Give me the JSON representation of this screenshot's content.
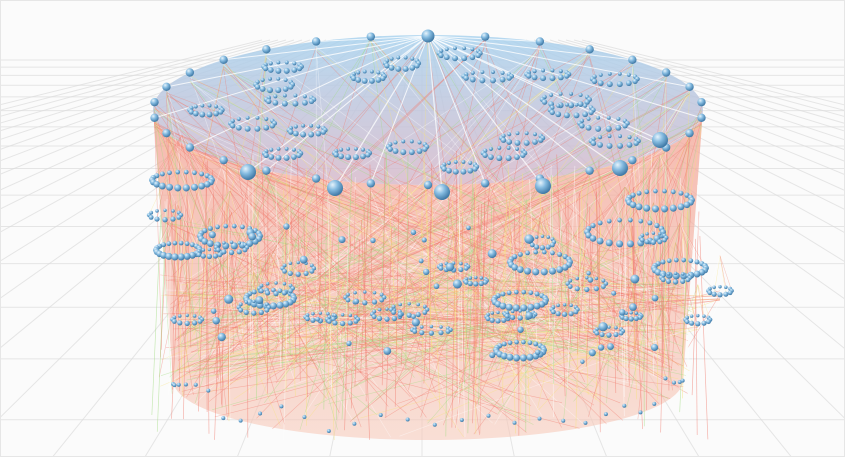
{
  "scene": {
    "kind": "3d-hierarchical-graph",
    "colors": {
      "background": "#fbfbfb",
      "grid_line": "#dcdcdc",
      "node_fill": "#7fb6dd",
      "node_highlight": "#cfe6f6",
      "node_shadow": "#3f79a6",
      "top_disc_fill": "#b9d9f0",
      "body_fill": "#f4b3a5",
      "edge_red": "#f0796c",
      "edge_yellow": "#f6e27a",
      "edge_green": "#9fdc7e",
      "edge_white": "#ffffff"
    },
    "levels": {
      "root_count": 1,
      "outer_top_ring_nodes": 30,
      "inner_top_ring_nodes": 6,
      "cluster_rings_top": 22,
      "cluster_rings_side": 26
    }
  }
}
